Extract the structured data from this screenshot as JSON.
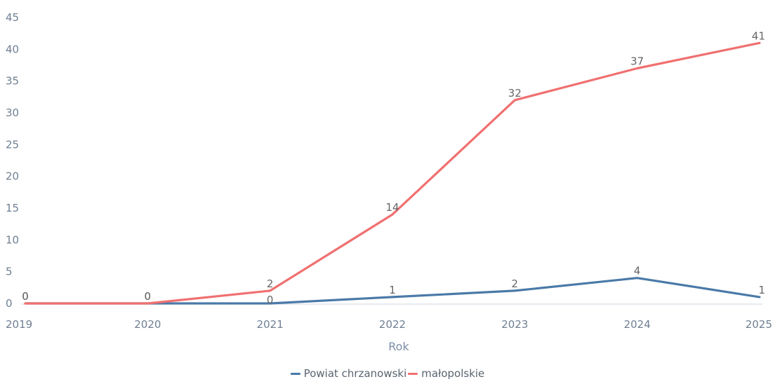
{
  "chart_data": {
    "type": "line",
    "title": "",
    "xlabel": "Rok",
    "ylabel": "",
    "x": [
      "2019",
      "2020",
      "2021",
      "2022",
      "2023",
      "2024",
      "2025"
    ],
    "ylim": [
      0,
      45
    ],
    "yticks": [
      0,
      5,
      10,
      15,
      20,
      25,
      30,
      35,
      40,
      45
    ],
    "grid": false,
    "legend_position": "bottom",
    "series": [
      {
        "name": "Powiat chrzanowski",
        "color": "#4a7aa8",
        "values": [
          0,
          0,
          0,
          1,
          2,
          4,
          1
        ],
        "labels": [
          "0",
          "0",
          "0",
          "1",
          "2",
          "4",
          "1"
        ]
      },
      {
        "name": "małopolskie",
        "color": "#f07070",
        "values": [
          0,
          0,
          2,
          14,
          32,
          37,
          41
        ],
        "labels": [
          "0",
          "0",
          "2",
          "14",
          "32",
          "37",
          "41"
        ]
      }
    ]
  }
}
